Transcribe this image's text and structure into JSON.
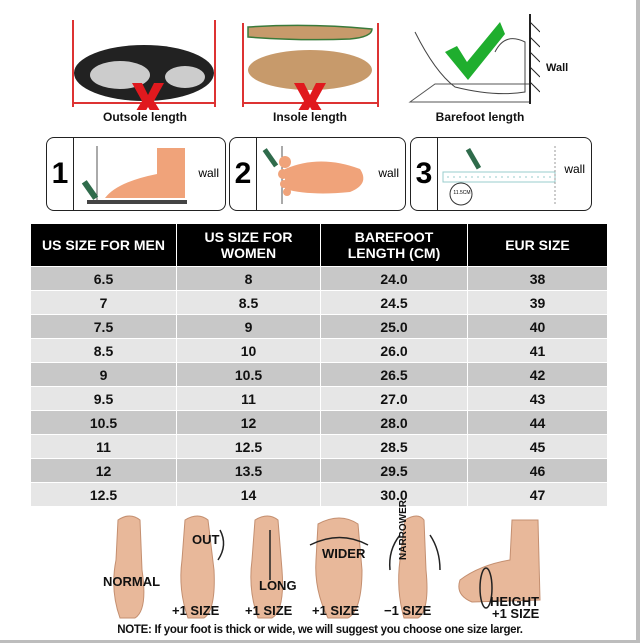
{
  "measure_methods": [
    {
      "label": "Outsole length",
      "verdict": "wrong",
      "icon": "x-icon"
    },
    {
      "label": "Insole length",
      "verdict": "wrong",
      "icon": "x-icon"
    },
    {
      "label": "Barefoot length",
      "verdict": "correct",
      "icon": "check-icon",
      "wall_label": "Wall"
    }
  ],
  "steps": [
    {
      "number": "1",
      "wall_label": "wall"
    },
    {
      "number": "2",
      "wall_label": "wall"
    },
    {
      "number": "3",
      "wall_label": "wall",
      "ruler_label": "11.5CM"
    }
  ],
  "size_table": {
    "headers": [
      "US SIZE FOR MEN",
      "US SIZE FOR WOMEN",
      "BAREFOOT LENGTH (CM)",
      "EUR SIZE"
    ],
    "rows": [
      [
        "6.5",
        "8",
        "24.0",
        "38"
      ],
      [
        "7",
        "8.5",
        "24.5",
        "39"
      ],
      [
        "7.5",
        "9",
        "25.0",
        "40"
      ],
      [
        "8.5",
        "10",
        "26.0",
        "41"
      ],
      [
        "9",
        "10.5",
        "26.5",
        "42"
      ],
      [
        "9.5",
        "11",
        "27.0",
        "43"
      ],
      [
        "10.5",
        "12",
        "28.0",
        "44"
      ],
      [
        "11",
        "12.5",
        "28.5",
        "45"
      ],
      [
        "12",
        "13.5",
        "29.5",
        "46"
      ],
      [
        "12.5",
        "14",
        "30.0",
        "47"
      ]
    ]
  },
  "foot_types": [
    {
      "label": "NORMAL",
      "adjust": ""
    },
    {
      "label": "OUT",
      "adjust": "+1 SIZE"
    },
    {
      "label": "LONG",
      "adjust": "+1 SIZE"
    },
    {
      "label": "WIDER",
      "adjust": "+1 SIZE"
    },
    {
      "label": "NARROWER",
      "adjust": "−1 SIZE"
    },
    {
      "label": "HEIGHT",
      "adjust": "+1 SIZE"
    }
  ],
  "note": "NOTE: If your foot is thick or wide, we will suggest you choose one size larger.",
  "colors": {
    "header_bg": "#000000",
    "row_dark": "#c8c8c8",
    "row_light": "#e6e6e6",
    "cross": "#e0191e",
    "check": "#1fae2e",
    "skin": "#e8b89a"
  }
}
